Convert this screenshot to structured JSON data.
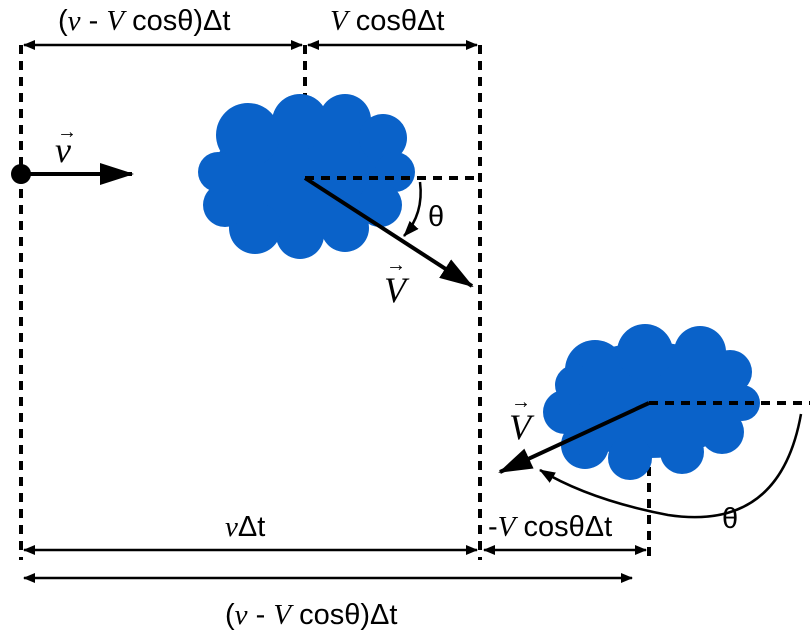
{
  "labels": {
    "top_left_dim": {
      "open": "(",
      "v": "v",
      "minus": " - ",
      "V": "V",
      "rest": " cosθ)Δt"
    },
    "top_right_dim": {
      "V": "V",
      "rest": " cosθΔt"
    },
    "small_v": "v",
    "big_V_cloud1": "V",
    "theta_1": "θ",
    "big_V_cloud2": "V",
    "theta_2": "θ",
    "bottom_vdt": {
      "v": "v",
      "rest": "Δt"
    },
    "bottom_right_dim": {
      "minus": "-",
      "V": "V",
      "rest": " cosθΔt"
    },
    "bottom_total": {
      "open": "(",
      "v": "v",
      "minus": " - ",
      "V": "V",
      "rest": " cosθ)Δt"
    },
    "vector_arrow": "→"
  },
  "colors": {
    "cloud": "#0a62c9",
    "ink": "#000000"
  }
}
